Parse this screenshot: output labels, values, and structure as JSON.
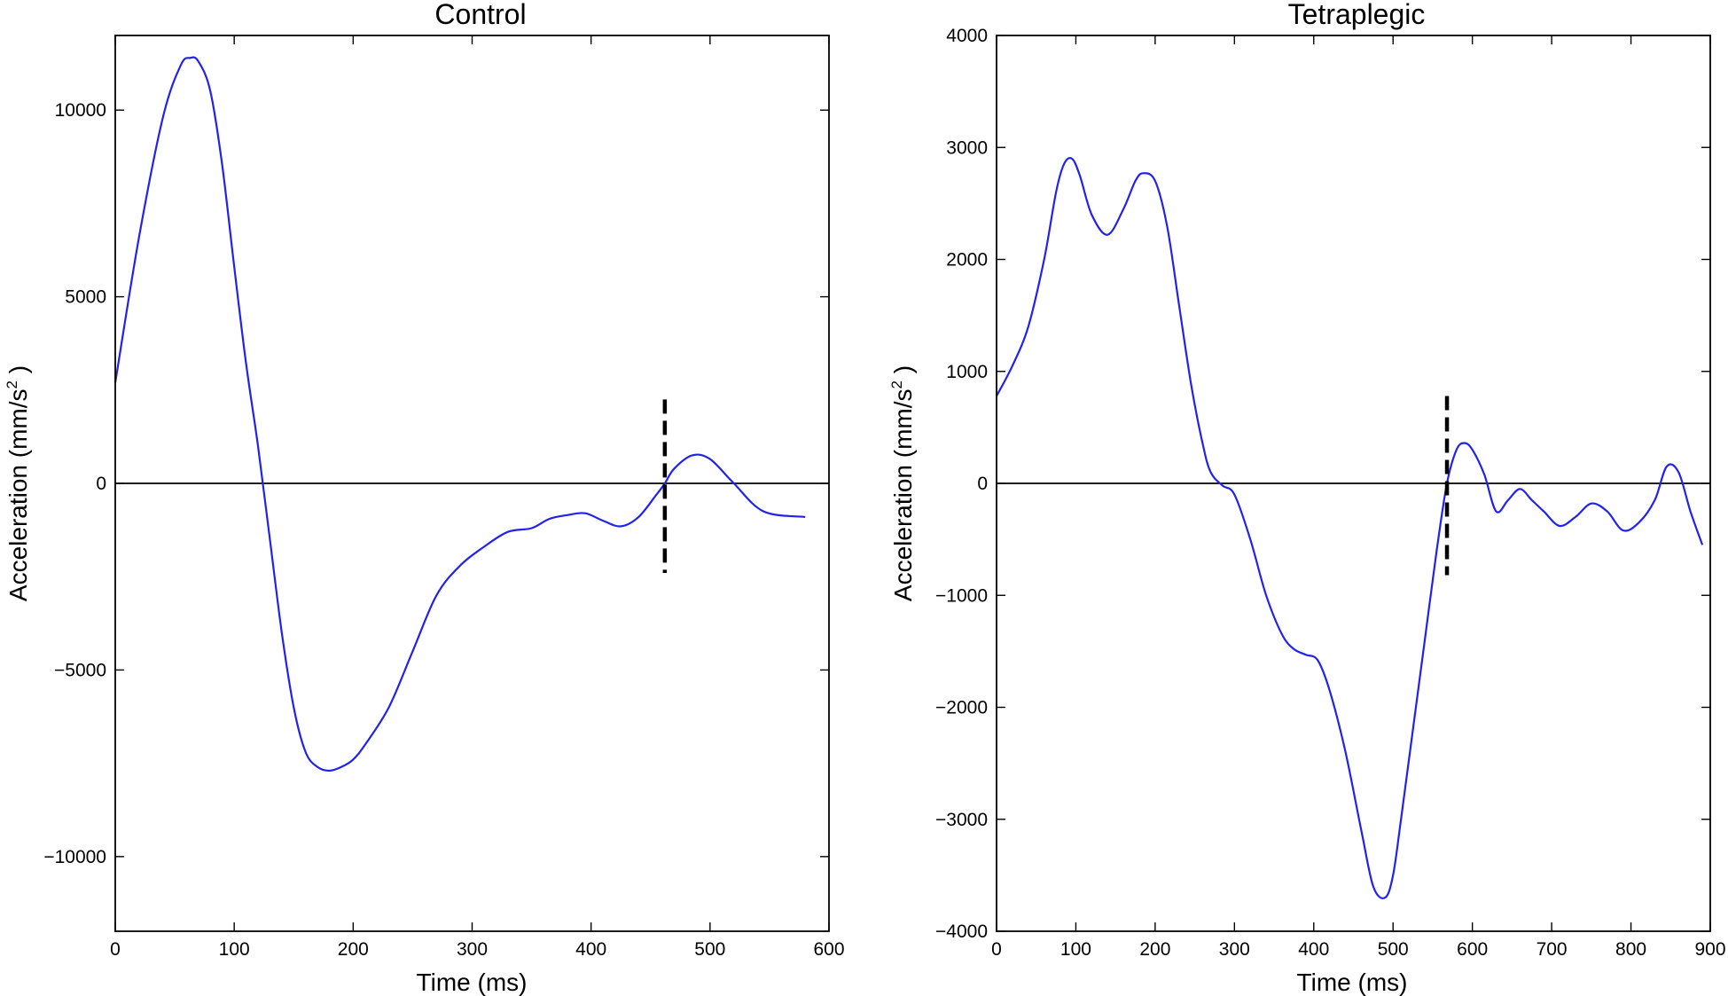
{
  "chart_data": [
    {
      "type": "line",
      "title": "Control",
      "xlabel": "Time (ms)",
      "ylabel": "Acceleration (mm/s",
      "ylabel_sup": "2",
      "ylabel_end": " )",
      "xlim": [
        0,
        600
      ],
      "ylim": [
        -12000,
        12000
      ],
      "xticks": [
        0,
        100,
        200,
        300,
        400,
        500,
        600
      ],
      "yticks": [
        -10000,
        -5000,
        0,
        5000,
        10000
      ],
      "xtick_labels": [
        "0",
        "100",
        "200",
        "300",
        "400",
        "500",
        "600"
      ],
      "ytick_labels": [
        "−10000",
        "−5000",
        "0",
        "5000",
        "10000"
      ],
      "zero_line": true,
      "grid": false,
      "line_color": "#2222ee",
      "marker_line": {
        "x": 462,
        "y_range": [
          -2400,
          2250
        ],
        "style": "dashed"
      },
      "series": [
        {
          "x": [
            0,
            20,
            40,
            55,
            63,
            70,
            80,
            90,
            100,
            110,
            120,
            130,
            140,
            150,
            160,
            170,
            180,
            190,
            200,
            210,
            230,
            250,
            270,
            290,
            310,
            330,
            350,
            365,
            380,
            395,
            410,
            425,
            440,
            455,
            462,
            470,
            485,
            500,
            520,
            545,
            580
          ],
          "y": [
            2700,
            6600,
            9800,
            11200,
            11400,
            11300,
            10500,
            8500,
            5800,
            3200,
            1000,
            -1500,
            -4000,
            -6000,
            -7200,
            -7600,
            -7700,
            -7600,
            -7400,
            -7000,
            -6000,
            -4500,
            -3000,
            -2200,
            -1700,
            -1300,
            -1200,
            -950,
            -850,
            -800,
            -1000,
            -1150,
            -900,
            -300,
            0,
            400,
            750,
            650,
            0,
            -750,
            -900
          ]
        }
      ]
    },
    {
      "type": "line",
      "title": "Tetraplegic",
      "xlabel": "Time (ms)",
      "ylabel": "Acceleration (mm/s",
      "ylabel_sup": "2",
      "ylabel_end": " )",
      "xlim": [
        0,
        900
      ],
      "ylim": [
        -4000,
        4000
      ],
      "xticks": [
        0,
        100,
        200,
        300,
        400,
        500,
        600,
        700,
        800,
        900
      ],
      "yticks": [
        -4000,
        -3000,
        -2000,
        -1000,
        0,
        1000,
        2000,
        3000,
        4000
      ],
      "xtick_labels": [
        "0",
        "100",
        "200",
        "300",
        "400",
        "500",
        "600",
        "700",
        "800",
        "900"
      ],
      "ytick_labels": [
        "−4000",
        "−3000",
        "−2000",
        "−1000",
        "0",
        "1000",
        "2000",
        "3000",
        "4000"
      ],
      "zero_line": true,
      "grid": false,
      "line_color": "#2222ee",
      "marker_line": {
        "x": 568,
        "y_range": [
          -820,
          780
        ],
        "style": "dashed"
      },
      "series": [
        {
          "x": [
            0,
            20,
            40,
            60,
            75,
            85,
            95,
            105,
            120,
            140,
            160,
            175,
            185,
            200,
            215,
            230,
            245,
            260,
            270,
            285,
            300,
            320,
            340,
            360,
            375,
            390,
            405,
            420,
            440,
            460,
            475,
            490,
            500,
            510,
            525,
            540,
            555,
            568,
            580,
            590,
            600,
            615,
            630,
            645,
            660,
            675,
            690,
            710,
            730,
            750,
            770,
            790,
            810,
            830,
            845,
            860,
            875,
            890
          ],
          "y": [
            780,
            1050,
            1400,
            2000,
            2600,
            2850,
            2900,
            2750,
            2400,
            2220,
            2450,
            2700,
            2770,
            2700,
            2300,
            1600,
            900,
            350,
            100,
            -20,
            -100,
            -500,
            -1000,
            -1350,
            -1480,
            -1530,
            -1580,
            -1850,
            -2400,
            -3100,
            -3600,
            -3700,
            -3500,
            -3000,
            -2200,
            -1400,
            -600,
            0,
            300,
            360,
            300,
            80,
            -250,
            -150,
            -50,
            -150,
            -250,
            -380,
            -300,
            -180,
            -250,
            -420,
            -350,
            -150,
            150,
            100,
            -250,
            -550
          ]
        }
      ]
    }
  ]
}
